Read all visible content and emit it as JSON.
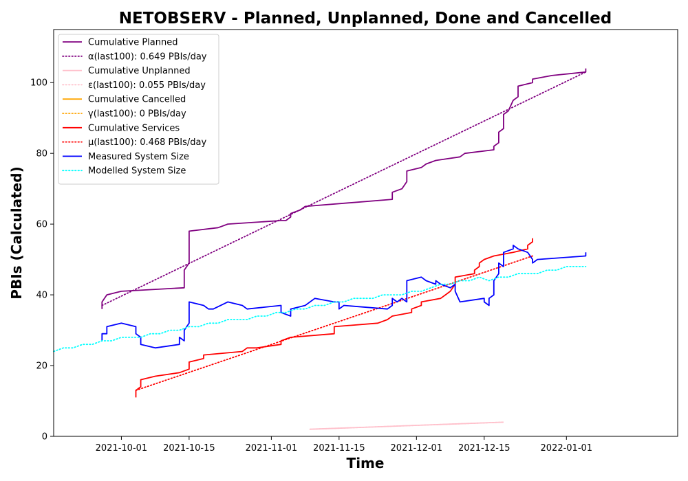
{
  "chart_data": {
    "type": "line",
    "title": "NETOBSERV - Planned, Unplanned, Done  and Cancelled",
    "xlabel": "Time",
    "ylabel": "PBIs (Calculated)",
    "xlim": [
      "2021-09-17",
      "2022-01-24"
    ],
    "ylim": [
      0,
      115
    ],
    "x_ticks": [
      "2021-10-01",
      "2021-10-15",
      "2021-11-01",
      "2021-11-15",
      "2021-12-01",
      "2021-12-15",
      "2022-01-01"
    ],
    "y_ticks": [
      0,
      20,
      40,
      60,
      80,
      100
    ],
    "grid": false,
    "legend_position": "top-left",
    "series": [
      {
        "name": "Cumulative Planned",
        "color": "#800080",
        "style": "solid",
        "points": [
          [
            "2021-09-27",
            36
          ],
          [
            "2021-09-27",
            38
          ],
          [
            "2021-09-28",
            40
          ],
          [
            "2021-10-01",
            41
          ],
          [
            "2021-10-14",
            42
          ],
          [
            "2021-10-14",
            45
          ],
          [
            "2021-10-14",
            47
          ],
          [
            "2021-10-15",
            49
          ],
          [
            "2021-10-15",
            55
          ],
          [
            "2021-10-15",
            58
          ],
          [
            "2021-10-21",
            59
          ],
          [
            "2021-10-23",
            60
          ],
          [
            "2021-11-03",
            61
          ],
          [
            "2021-11-04",
            61
          ],
          [
            "2021-11-05",
            62
          ],
          [
            "2021-11-05",
            63
          ],
          [
            "2021-11-07",
            64
          ],
          [
            "2021-11-08",
            65
          ],
          [
            "2021-11-26",
            67
          ],
          [
            "2021-11-26",
            69
          ],
          [
            "2021-11-28",
            70
          ],
          [
            "2021-11-29",
            72
          ],
          [
            "2021-11-29",
            75
          ],
          [
            "2021-12-02",
            76
          ],
          [
            "2021-12-03",
            77
          ],
          [
            "2021-12-05",
            78
          ],
          [
            "2021-12-10",
            79
          ],
          [
            "2021-12-11",
            80
          ],
          [
            "2021-12-17",
            81
          ],
          [
            "2021-12-17",
            82
          ],
          [
            "2021-12-18",
            83
          ],
          [
            "2021-12-18",
            86
          ],
          [
            "2021-12-19",
            87
          ],
          [
            "2021-12-19",
            91
          ],
          [
            "2021-12-20",
            92
          ],
          [
            "2021-12-21",
            95
          ],
          [
            "2021-12-22",
            96
          ],
          [
            "2021-12-22",
            99
          ],
          [
            "2021-12-25",
            100
          ],
          [
            "2021-12-25",
            101
          ],
          [
            "2021-12-29",
            102
          ],
          [
            "2022-01-05",
            103
          ],
          [
            "2022-01-05",
            104
          ]
        ]
      },
      {
        "name": "α(last100): 0.649 PBIs/day",
        "color": "#800080",
        "style": "dotted",
        "points": [
          [
            "2021-09-27",
            37
          ],
          [
            "2022-01-05",
            103
          ]
        ]
      },
      {
        "name": "Cumulative Unplanned",
        "color": "#ffc0cb",
        "style": "solid",
        "points": [
          [
            "2021-11-09",
            2
          ],
          [
            "2021-12-19",
            4
          ]
        ]
      },
      {
        "name": "ε(last100): 0.055 PBIs/day",
        "color": "#ffc0cb",
        "style": "dotted",
        "points": [
          [
            "2021-11-09",
            2
          ],
          [
            "2021-12-19",
            4
          ]
        ]
      },
      {
        "name": "Cumulative Cancelled",
        "color": "#ffa500",
        "style": "solid",
        "points": []
      },
      {
        "name": "γ(last100): 0 PBIs/day",
        "color": "#ffa500",
        "style": "dotted",
        "points": []
      },
      {
        "name": "Cumulative Services",
        "color": "#ff0000",
        "style": "solid",
        "points": [
          [
            "2021-10-04",
            11
          ],
          [
            "2021-10-04",
            13
          ],
          [
            "2021-10-05",
            14
          ],
          [
            "2021-10-05",
            16
          ],
          [
            "2021-10-08",
            17
          ],
          [
            "2021-10-13",
            18
          ],
          [
            "2021-10-15",
            19
          ],
          [
            "2021-10-15",
            21
          ],
          [
            "2021-10-18",
            22
          ],
          [
            "2021-10-18",
            23
          ],
          [
            "2021-10-26",
            24
          ],
          [
            "2021-10-27",
            25
          ],
          [
            "2021-10-29",
            25
          ],
          [
            "2021-11-03",
            26
          ],
          [
            "2021-11-03",
            27
          ],
          [
            "2021-11-05",
            28
          ],
          [
            "2021-11-14",
            29
          ],
          [
            "2021-11-14",
            31
          ],
          [
            "2021-11-23",
            32
          ],
          [
            "2021-11-25",
            33
          ],
          [
            "2021-11-26",
            34
          ],
          [
            "2021-11-30",
            35
          ],
          [
            "2021-11-30",
            36
          ],
          [
            "2021-12-02",
            37
          ],
          [
            "2021-12-02",
            38
          ],
          [
            "2021-12-06",
            39
          ],
          [
            "2021-12-07",
            40
          ],
          [
            "2021-12-08",
            41
          ],
          [
            "2021-12-09",
            43
          ],
          [
            "2021-12-09",
            45
          ],
          [
            "2021-12-13",
            46
          ],
          [
            "2021-12-13",
            47
          ],
          [
            "2021-12-14",
            48
          ],
          [
            "2021-12-14",
            49
          ],
          [
            "2021-12-15",
            50
          ],
          [
            "2021-12-17",
            51
          ],
          [
            "2021-12-21",
            52
          ],
          [
            "2021-12-24",
            53
          ],
          [
            "2021-12-24",
            54
          ],
          [
            "2021-12-25",
            55
          ],
          [
            "2021-12-25",
            56
          ]
        ]
      },
      {
        "name": "μ(last100): 0.468 PBIs/day",
        "color": "#ff0000",
        "style": "dotted",
        "points": [
          [
            "2021-10-04",
            13
          ],
          [
            "2021-12-25",
            51
          ]
        ]
      },
      {
        "name": "Measured System Size",
        "color": "#0000ff",
        "style": "solid",
        "points": [
          [
            "2021-09-27",
            27
          ],
          [
            "2021-09-27",
            29
          ],
          [
            "2021-09-28",
            29
          ],
          [
            "2021-09-28",
            31
          ],
          [
            "2021-10-01",
            32
          ],
          [
            "2021-10-04",
            31
          ],
          [
            "2021-10-04",
            29
          ],
          [
            "2021-10-05",
            28
          ],
          [
            "2021-10-05",
            26
          ],
          [
            "2021-10-08",
            25
          ],
          [
            "2021-10-13",
            26
          ],
          [
            "2021-10-13",
            28
          ],
          [
            "2021-10-14",
            27
          ],
          [
            "2021-10-14",
            30
          ],
          [
            "2021-10-15",
            32
          ],
          [
            "2021-10-15",
            35
          ],
          [
            "2021-10-15",
            38
          ],
          [
            "2021-10-18",
            37
          ],
          [
            "2021-10-19",
            36
          ],
          [
            "2021-10-20",
            36
          ],
          [
            "2021-10-23",
            38
          ],
          [
            "2021-10-26",
            37
          ],
          [
            "2021-10-27",
            36
          ],
          [
            "2021-11-03",
            37
          ],
          [
            "2021-11-03",
            35
          ],
          [
            "2021-11-05",
            34
          ],
          [
            "2021-11-05",
            36
          ],
          [
            "2021-11-08",
            37
          ],
          [
            "2021-11-10",
            39
          ],
          [
            "2021-11-14",
            38
          ],
          [
            "2021-11-15",
            38
          ],
          [
            "2021-11-15",
            36
          ],
          [
            "2021-11-16",
            37
          ],
          [
            "2021-11-25",
            36
          ],
          [
            "2021-11-26",
            37
          ],
          [
            "2021-11-26",
            39
          ],
          [
            "2021-11-27",
            38
          ],
          [
            "2021-11-28",
            39
          ],
          [
            "2021-11-29",
            38
          ],
          [
            "2021-11-29",
            44
          ],
          [
            "2021-12-02",
            45
          ],
          [
            "2021-12-03",
            44
          ],
          [
            "2021-12-05",
            43
          ],
          [
            "2021-12-05",
            44
          ],
          [
            "2021-12-06",
            43
          ],
          [
            "2021-12-08",
            42
          ],
          [
            "2021-12-09",
            43
          ],
          [
            "2021-12-09",
            41
          ],
          [
            "2021-12-10",
            38
          ],
          [
            "2021-12-15",
            39
          ],
          [
            "2021-12-15",
            38
          ],
          [
            "2021-12-16",
            37
          ],
          [
            "2021-12-16",
            39
          ],
          [
            "2021-12-17",
            40
          ],
          [
            "2021-12-17",
            44
          ],
          [
            "2021-12-18",
            46
          ],
          [
            "2021-12-18",
            49
          ],
          [
            "2021-12-19",
            48
          ],
          [
            "2021-12-19",
            52
          ],
          [
            "2021-12-21",
            53
          ],
          [
            "2021-12-21",
            54
          ],
          [
            "2021-12-22",
            53
          ],
          [
            "2021-12-24",
            52
          ],
          [
            "2021-12-25",
            50
          ],
          [
            "2021-12-25",
            49
          ],
          [
            "2021-12-26",
            50
          ],
          [
            "2022-01-05",
            51
          ],
          [
            "2022-01-05",
            52
          ]
        ]
      },
      {
        "name": "Modelled System Size",
        "color": "#00ffff",
        "style": "dotted",
        "points": [
          [
            "2021-09-17",
            24
          ],
          [
            "2021-09-19",
            25
          ],
          [
            "2021-09-21",
            25
          ],
          [
            "2021-09-23",
            26
          ],
          [
            "2021-09-25",
            26
          ],
          [
            "2021-09-27",
            27
          ],
          [
            "2021-09-29",
            27
          ],
          [
            "2021-10-01",
            28
          ],
          [
            "2021-10-03",
            28
          ],
          [
            "2021-10-05",
            28
          ],
          [
            "2021-10-07",
            29
          ],
          [
            "2021-10-09",
            29
          ],
          [
            "2021-10-11",
            30
          ],
          [
            "2021-10-13",
            30
          ],
          [
            "2021-10-15",
            31
          ],
          [
            "2021-10-17",
            31
          ],
          [
            "2021-10-19",
            32
          ],
          [
            "2021-10-21",
            32
          ],
          [
            "2021-10-23",
            33
          ],
          [
            "2021-10-25",
            33
          ],
          [
            "2021-10-27",
            33
          ],
          [
            "2021-10-29",
            34
          ],
          [
            "2021-10-31",
            34
          ],
          [
            "2021-11-02",
            35
          ],
          [
            "2021-11-04",
            35
          ],
          [
            "2021-11-06",
            36
          ],
          [
            "2021-11-08",
            36
          ],
          [
            "2021-11-10",
            37
          ],
          [
            "2021-11-12",
            37
          ],
          [
            "2021-11-14",
            38
          ],
          [
            "2021-11-16",
            38
          ],
          [
            "2021-11-18",
            39
          ],
          [
            "2021-11-20",
            39
          ],
          [
            "2021-11-22",
            39
          ],
          [
            "2021-11-24",
            40
          ],
          [
            "2021-11-26",
            40
          ],
          [
            "2021-11-28",
            40
          ],
          [
            "2021-11-30",
            41
          ],
          [
            "2021-12-02",
            41
          ],
          [
            "2021-12-04",
            42
          ],
          [
            "2021-12-06",
            43
          ],
          [
            "2021-12-08",
            43
          ],
          [
            "2021-12-10",
            44
          ],
          [
            "2021-12-12",
            44
          ],
          [
            "2021-12-14",
            45
          ],
          [
            "2021-12-16",
            44
          ],
          [
            "2021-12-18",
            45
          ],
          [
            "2021-12-20",
            45
          ],
          [
            "2021-12-22",
            46
          ],
          [
            "2021-12-24",
            46
          ],
          [
            "2021-12-26",
            46
          ],
          [
            "2021-12-28",
            47
          ],
          [
            "2021-12-30",
            47
          ],
          [
            "2022-01-01",
            48
          ],
          [
            "2022-01-03",
            48
          ],
          [
            "2022-01-05",
            48
          ]
        ]
      }
    ]
  }
}
